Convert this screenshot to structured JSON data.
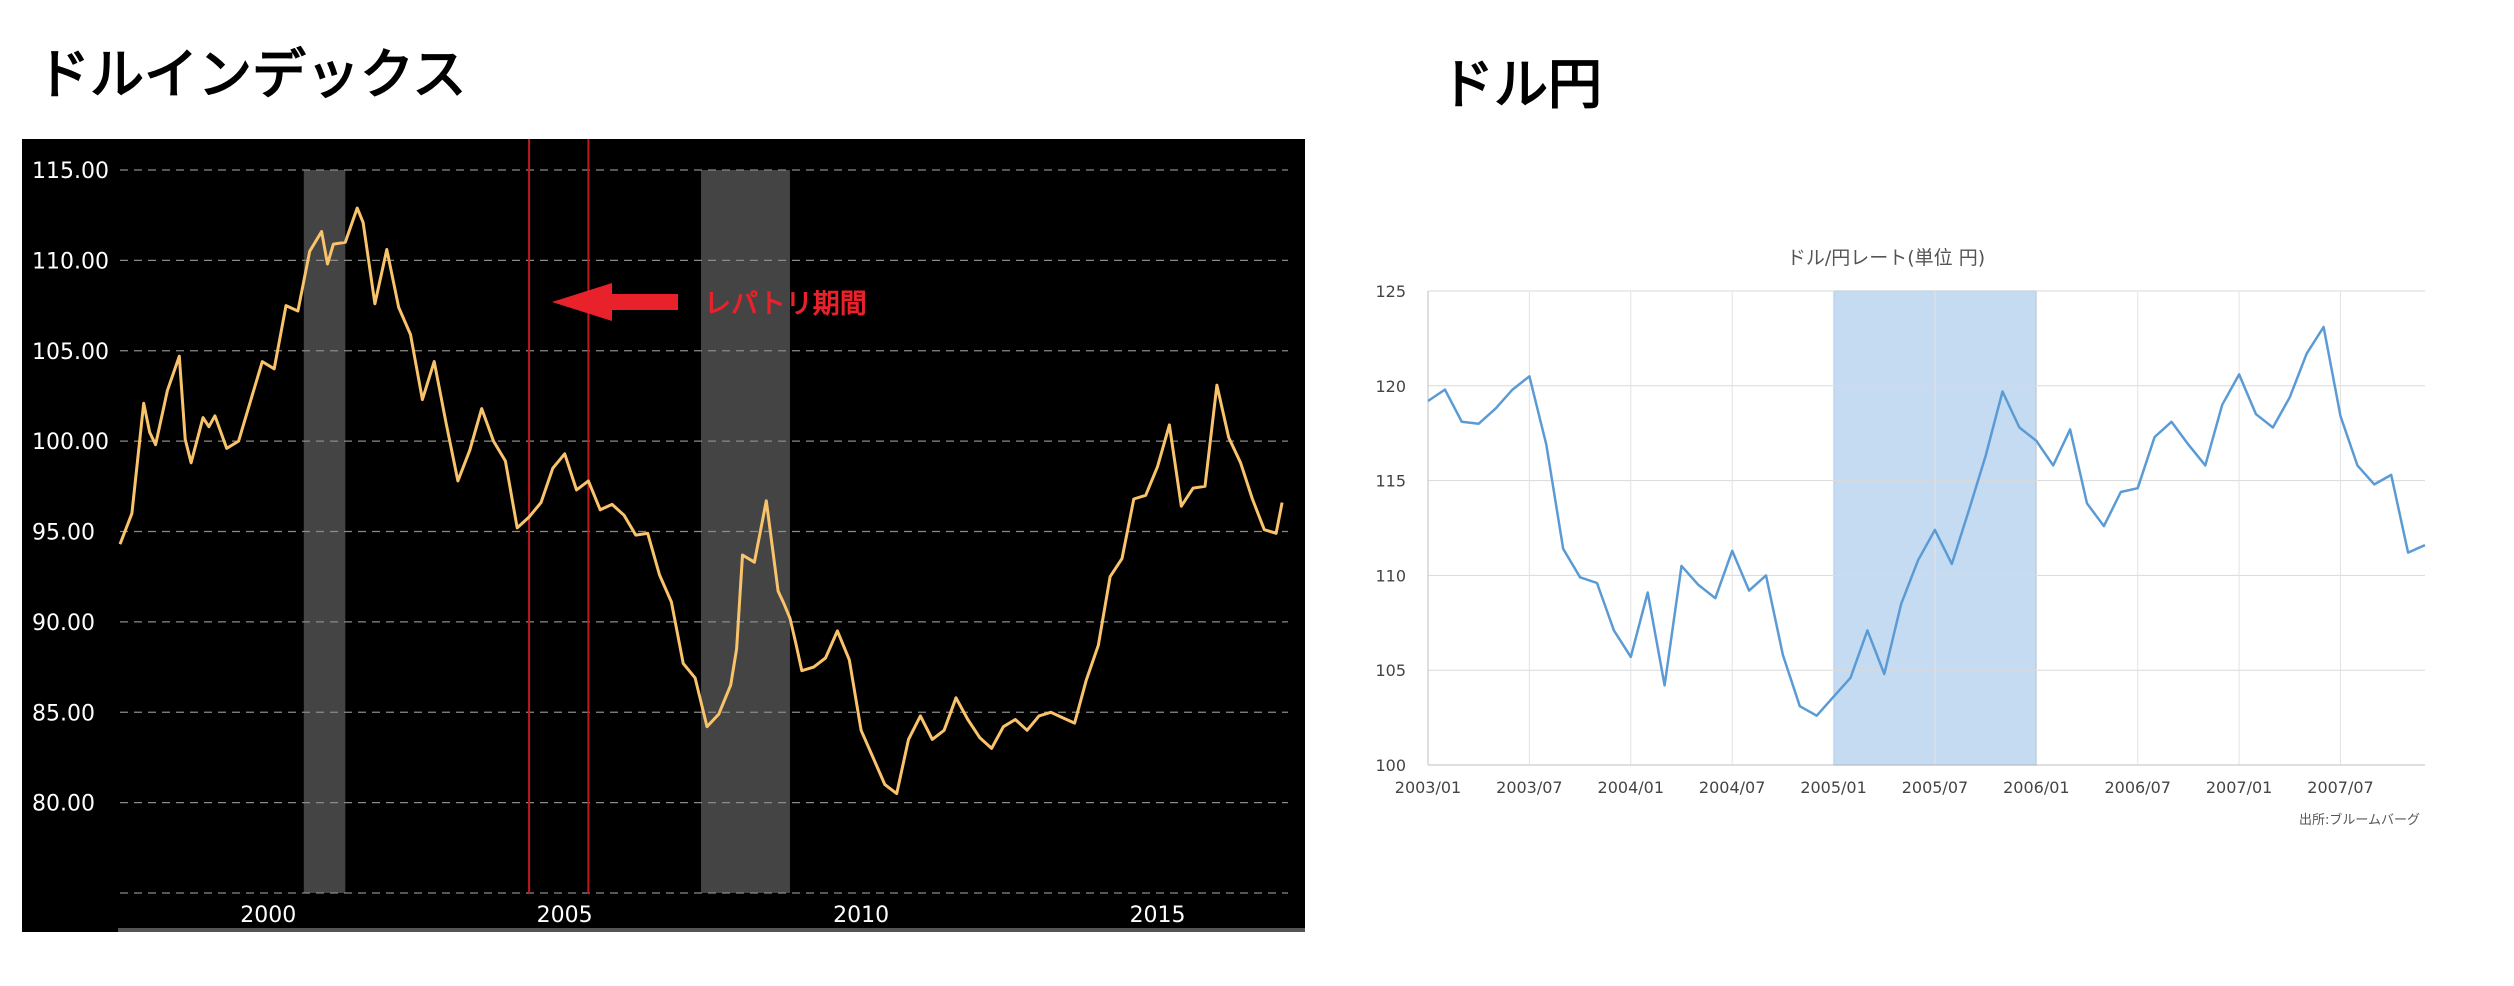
{
  "left_panel": {
    "title": "ドルインデックス",
    "annotation": "レパトリ期間"
  },
  "right_panel": {
    "title": "ドル円",
    "source": "出所:ブルームバーグ"
  },
  "colors": {
    "line_left": "#f8c36a",
    "annotation_red": "#e8212a",
    "shade_left": "#444444",
    "line_right": "#5b9bd5",
    "shade_right": "#c5dbf2"
  },
  "chart_data": [
    {
      "type": "line",
      "title": "",
      "xlabel": "",
      "ylabel": "",
      "xlim": [
        1997.5,
        2017.2
      ],
      "ylim": [
        75,
        115
      ],
      "y_ticks": [
        "115.00",
        "110.00",
        "105.00",
        "100.00",
        "95.00",
        "90.00",
        "85.00",
        "80.00"
      ],
      "x_ticks": [
        2000,
        2005,
        2010,
        2015
      ],
      "grid": "horizontal-dashed",
      "shaded_ranges": [
        [
          2000.6,
          2001.3
        ],
        [
          2007.3,
          2008.8
        ]
      ],
      "vertical_lines": [
        2004.4,
        2005.4
      ],
      "series": [
        {
          "x": [
            1997.5,
            1997.7,
            1997.9,
            1998.0,
            1998.1,
            1998.3,
            1998.5,
            1998.6,
            1998.7,
            1998.9,
            1999.0,
            1999.1,
            1999.3,
            1999.5,
            1999.7,
            1999.9,
            2000.1,
            2000.3,
            2000.5,
            2000.7,
            2000.9,
            2001.0,
            2001.1,
            2001.3,
            2001.5,
            2001.6,
            2001.8,
            2002.0,
            2002.2,
            2002.4,
            2002.6,
            2002.8,
            2003.0,
            2003.2,
            2003.4,
            2003.6,
            2003.8,
            2004.0,
            2004.2,
            2004.4,
            2004.6,
            2004.8,
            2005.0,
            2005.2,
            2005.4,
            2005.6,
            2005.8,
            2006.0,
            2006.2,
            2006.4,
            2006.6,
            2006.8,
            2007.0,
            2007.2,
            2007.4,
            2007.6,
            2007.8,
            2007.9,
            2008.0,
            2008.2,
            2008.4,
            2008.6,
            2008.7,
            2008.8,
            2008.9,
            2009.0,
            2009.2,
            2009.4,
            2009.6,
            2009.8,
            2010.0,
            2010.2,
            2010.4,
            2010.6,
            2010.8,
            2011.0,
            2011.2,
            2011.4,
            2011.6,
            2011.8,
            2012.0,
            2012.2,
            2012.4,
            2012.6,
            2012.8,
            2013.0,
            2013.2,
            2013.4,
            2013.6,
            2013.8,
            2014.0,
            2014.2,
            2014.4,
            2014.6,
            2014.8,
            2015.0,
            2015.2,
            2015.4,
            2015.6,
            2015.8,
            2016.0,
            2016.2,
            2016.4,
            2016.6,
            2016.8,
            2017.0,
            2017.1
          ],
          "values": [
            94.3,
            96.0,
            102.1,
            100.5,
            99.8,
            102.8,
            104.7,
            100.1,
            98.8,
            101.3,
            100.8,
            101.4,
            99.6,
            100.0,
            102.2,
            104.4,
            104.0,
            107.5,
            107.2,
            110.5,
            111.6,
            109.8,
            110.9,
            111.0,
            112.9,
            112.1,
            107.6,
            110.6,
            107.4,
            105.9,
            102.3,
            104.4,
            101.0,
            97.8,
            99.5,
            101.8,
            100.0,
            98.9,
            95.2,
            95.8,
            96.6,
            98.5,
            99.3,
            97.3,
            97.8,
            96.2,
            96.5,
            95.9,
            94.8,
            94.9,
            92.6,
            91.1,
            87.7,
            86.9,
            84.2,
            84.9,
            86.5,
            88.5,
            93.7,
            93.3,
            96.7,
            91.7,
            91.0,
            90.2,
            88.8,
            87.3,
            87.5,
            88.0,
            89.5,
            87.9,
            84.0,
            82.5,
            81.0,
            80.5,
            83.5,
            84.8,
            83.5,
            84.0,
            85.8,
            84.6,
            83.6,
            83.0,
            84.2,
            84.6,
            84.0,
            84.8,
            85.0,
            84.7,
            84.4,
            86.8,
            88.7,
            92.5,
            93.5,
            96.8,
            97.0,
            98.6,
            100.9,
            96.4,
            97.4,
            97.5,
            103.1,
            100.2,
            98.8,
            96.8,
            95.1,
            94.9,
            96.6
          ]
        }
      ]
    },
    {
      "type": "line",
      "title": "ドル/円レート(単位 円)",
      "xlabel": "",
      "ylabel": "",
      "ylim": [
        100,
        125
      ],
      "y_ticks": [
        "125",
        "120",
        "115",
        "110",
        "105",
        "100"
      ],
      "x_ticks": [
        "2003/01",
        "2003/07",
        "2004/01",
        "2004/07",
        "2005/01",
        "2005/07",
        "2006/01",
        "2006/07",
        "2007/01",
        "2007/07"
      ],
      "grid": "both",
      "shaded_ranges": [
        [
          "2005/01",
          "2006/01"
        ]
      ],
      "series": [
        {
          "x": [
            "2003/01",
            "2003/02",
            "2003/03",
            "2003/04",
            "2003/05",
            "2003/06",
            "2003/07",
            "2003/08",
            "2003/09",
            "2003/10",
            "2003/11",
            "2003/12",
            "2004/01",
            "2004/02",
            "2004/03",
            "2004/04",
            "2004/05",
            "2004/06",
            "2004/07",
            "2004/08",
            "2004/09",
            "2004/10",
            "2004/11",
            "2004/12",
            "2005/01",
            "2005/02",
            "2005/03",
            "2005/04",
            "2005/05",
            "2005/06",
            "2005/07",
            "2005/08",
            "2005/09",
            "2005/10",
            "2005/11",
            "2005/12",
            "2006/01",
            "2006/02",
            "2006/03",
            "2006/04",
            "2006/05",
            "2006/06",
            "2006/07",
            "2006/08",
            "2006/09",
            "2006/10",
            "2006/11",
            "2006/12",
            "2007/01",
            "2007/02",
            "2007/03",
            "2007/04",
            "2007/05",
            "2007/06",
            "2007/07",
            "2007/08",
            "2007/09",
            "2007/10",
            "2007/11",
            "2007/12"
          ],
          "values": [
            119.2,
            119.8,
            118.1,
            118.0,
            118.8,
            119.8,
            120.5,
            116.9,
            111.4,
            109.9,
            109.6,
            107.1,
            105.7,
            109.1,
            104.2,
            110.5,
            109.5,
            108.8,
            111.3,
            109.2,
            110.0,
            105.8,
            103.1,
            102.6,
            103.6,
            104.6,
            107.1,
            104.8,
            108.5,
            110.8,
            112.4,
            110.6,
            113.4,
            116.3,
            119.7,
            117.8,
            117.1,
            115.8,
            117.7,
            113.8,
            112.6,
            114.4,
            114.6,
            117.3,
            118.1,
            116.9,
            115.8,
            119.0,
            120.6,
            118.5,
            117.8,
            119.4,
            121.7,
            123.1,
            118.4,
            115.8,
            114.8,
            115.3,
            111.2,
            111.6
          ]
        }
      ]
    }
  ]
}
